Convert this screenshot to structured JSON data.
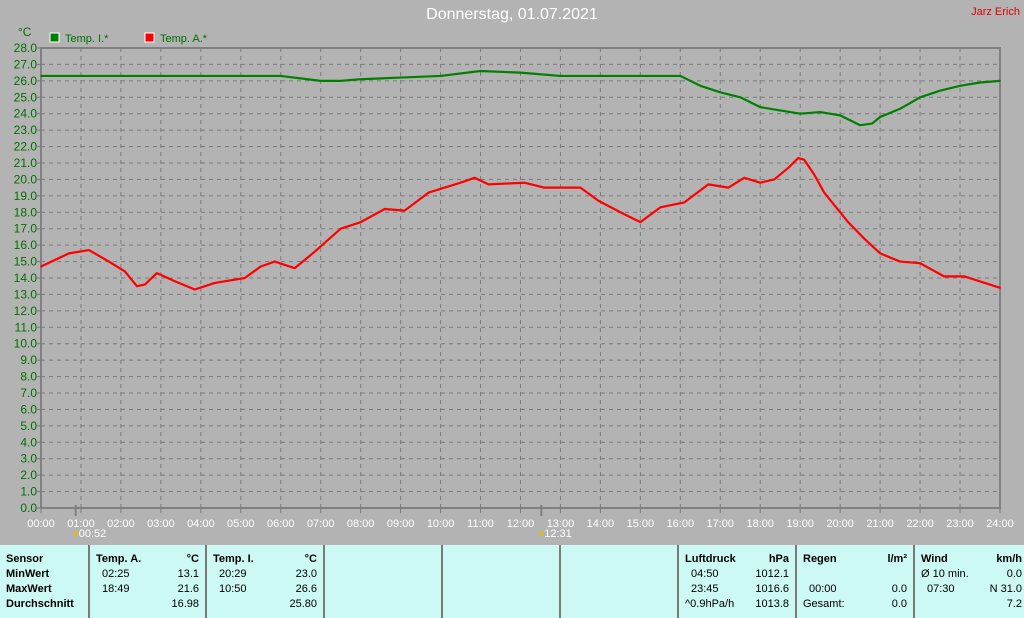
{
  "title": "Donnerstag, 01.07.2021",
  "author": "Jarz Erich",
  "chart_data": {
    "type": "line",
    "ylabel": "°C",
    "ylim": [
      0,
      28
    ],
    "yticks": [
      "0.0",
      "1.0",
      "2.0",
      "3.0",
      "4.0",
      "5.0",
      "6.0",
      "7.0",
      "8.0",
      "9.0",
      "10.0",
      "11.0",
      "12.0",
      "13.0",
      "14.0",
      "15.0",
      "16.0",
      "17.0",
      "18.0",
      "19.0",
      "20.0",
      "21.0",
      "22.0",
      "23.0",
      "24.0",
      "25.0",
      "26.0",
      "27.0",
      "28.0"
    ],
    "xlim": [
      0,
      24
    ],
    "xticks": [
      "00:00",
      "01:00",
      "02:00",
      "03:00",
      "04:00",
      "05:00",
      "06:00",
      "07:00",
      "08:00",
      "09:00",
      "10:00",
      "11:00",
      "12:00",
      "13:00",
      "14:00",
      "15:00",
      "16:00",
      "17:00",
      "18:00",
      "19:00",
      "20:00",
      "21:00",
      "22:00",
      "23:00",
      "24:00"
    ],
    "grid": true,
    "legend": "top-left",
    "markers": [
      {
        "hour": 0.87,
        "label": "00:52",
        "icon": "moonrise-icon"
      },
      {
        "hour": 12.52,
        "label": "12:31",
        "icon": "moonset-icon"
      }
    ],
    "series": [
      {
        "name": "Temp. I.*",
        "color": "#008000",
        "x": [
          0,
          6,
          7,
          7.5,
          8,
          9,
          10,
          11,
          12,
          13,
          16,
          16.5,
          17,
          17.5,
          18,
          18.5,
          19,
          19.5,
          20,
          20.5,
          20.8,
          21,
          21.5,
          22,
          22.5,
          23,
          23.5,
          24
        ],
        "y": [
          26.3,
          26.3,
          26.0,
          26.0,
          26.1,
          26.2,
          26.3,
          26.6,
          26.5,
          26.3,
          26.3,
          25.7,
          25.3,
          25.0,
          24.4,
          24.2,
          24.0,
          24.1,
          23.9,
          23.3,
          23.4,
          23.8,
          24.3,
          25.0,
          25.4,
          25.7,
          25.9,
          26.0
        ]
      },
      {
        "name": "Temp. A.*",
        "color": "#ff0000",
        "x": [
          0,
          0.7,
          1.2,
          1.7,
          2.1,
          2.4,
          2.6,
          2.9,
          3.35,
          3.85,
          4.35,
          5.1,
          5.5,
          5.85,
          6.35,
          6.85,
          7.5,
          8,
          8.6,
          9.1,
          9.7,
          10.5,
          10.85,
          11.2,
          12.1,
          12.6,
          13.5,
          13.95,
          14.5,
          15,
          15.5,
          16.1,
          16.7,
          17.2,
          17.6,
          18,
          18.35,
          18.7,
          18.95,
          19.1,
          19.35,
          19.6,
          20.2,
          20.6,
          21,
          21.5,
          22,
          22.6,
          23.1,
          24
        ],
        "y": [
          14.7,
          15.5,
          15.7,
          15.0,
          14.4,
          13.5,
          13.6,
          14.3,
          13.8,
          13.3,
          13.7,
          14.0,
          14.7,
          15.0,
          14.6,
          15.6,
          17.0,
          17.4,
          18.2,
          18.1,
          19.2,
          19.8,
          20.1,
          19.7,
          19.8,
          19.5,
          19.5,
          18.7,
          18.0,
          17.4,
          18.3,
          18.6,
          19.7,
          19.5,
          20.1,
          19.8,
          20.0,
          20.7,
          21.3,
          21.2,
          20.3,
          19.2,
          17.4,
          16.4,
          15.5,
          15.0,
          14.9,
          14.1,
          14.1,
          13.4
        ]
      }
    ]
  },
  "table": {
    "sensor": {
      "h": "Sensor",
      "min": "MinWert",
      "max": "MaxWert",
      "avg": "Durchschnitt"
    },
    "temp_a": {
      "h": "Temp. A.",
      "u": "°C",
      "min_t": "02:25",
      "min": "13.1",
      "max_t": "18:49",
      "max": "21.6",
      "avg": "16.98"
    },
    "temp_i": {
      "h": "Temp. I.",
      "u": "°C",
      "min_t": "20:29",
      "min": "23.0",
      "max_t": "10:50",
      "max": "26.6",
      "avg": "25.80"
    },
    "luft": {
      "h": "Luftdruck",
      "u": "hPa",
      "min_t": "04:50",
      "min": "1012.1",
      "max_t": "23:45",
      "max": "1016.6",
      "trend": "^0.9hPa/h",
      "avg": "1013.8"
    },
    "regen": {
      "h": "Regen",
      "u": "l/m²",
      "t": "00:00",
      "v": "0.0",
      "g": "Gesamt:",
      "gv": "0.0"
    },
    "wind": {
      "h": "Wind",
      "u": "km/h",
      "a": "Ø 10 min.",
      "av": "0.0",
      "t": "07:30",
      "tv": "N 31.0",
      "v": "7.2"
    }
  }
}
